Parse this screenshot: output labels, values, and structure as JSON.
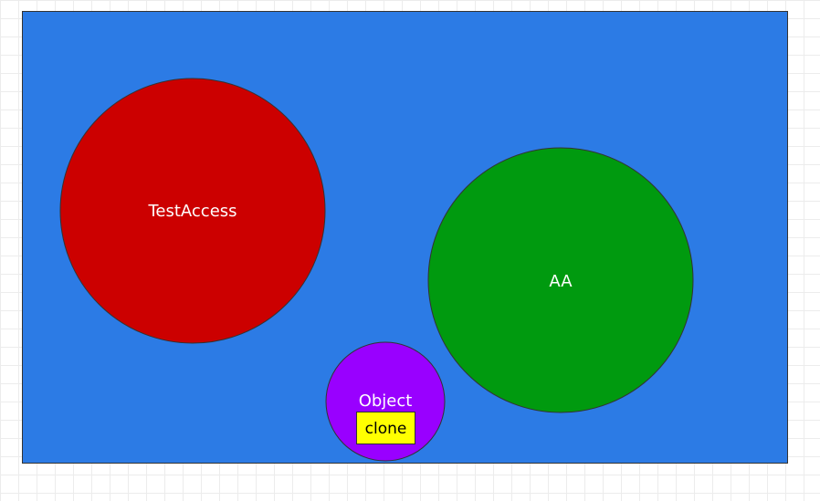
{
  "diagram": {
    "container": {
      "fill": "#2c7be5",
      "stroke": "#333333"
    },
    "nodes": [
      {
        "id": "testaccess",
        "label": "TestAccess",
        "fill": "#cc0000"
      },
      {
        "id": "aa",
        "label": "AA",
        "fill": "#009a0f"
      },
      {
        "id": "object",
        "label": "Object",
        "fill": "#9900ff"
      }
    ],
    "tags": [
      {
        "parent": "object",
        "label": "clone",
        "fill": "#ffff00"
      }
    ]
  }
}
